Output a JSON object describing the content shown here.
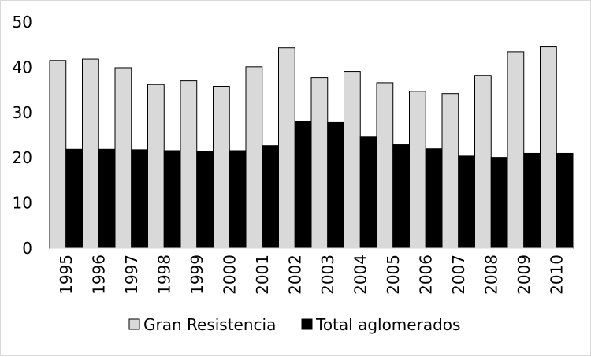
{
  "chart_data": {
    "type": "bar",
    "title": "",
    "xlabel": "",
    "ylabel": "",
    "categories": [
      "1995",
      "1996",
      "1997",
      "1998",
      "1999",
      "2000",
      "2001",
      "2002",
      "2003",
      "2004",
      "2005",
      "2006",
      "2007",
      "2008",
      "2009",
      "2010"
    ],
    "series": [
      {
        "name": "Gran Resistencia",
        "color": "#d9d9d9",
        "values": [
          41.5,
          41.8,
          39.9,
          36.2,
          37.0,
          35.8,
          40.1,
          44.3,
          37.7,
          39.1,
          36.6,
          34.7,
          34.2,
          38.2,
          43.4,
          44.5
        ]
      },
      {
        "name": "Total aglomerados",
        "color": "#000000",
        "values": [
          21.9,
          21.9,
          21.8,
          21.6,
          21.4,
          21.6,
          22.7,
          28.1,
          27.8,
          24.6,
          22.9,
          22.0,
          20.4,
          20.1,
          21.0,
          21.0
        ]
      }
    ],
    "ylim": [
      0,
      50
    ],
    "yticks": [
      "0",
      "10",
      "20",
      "30",
      "40",
      "50"
    ],
    "grid": false,
    "legend_position": "bottom"
  }
}
